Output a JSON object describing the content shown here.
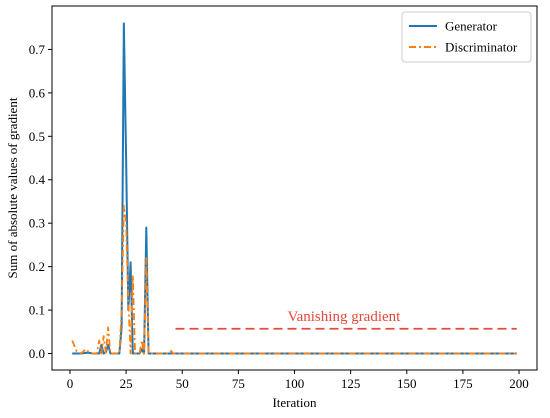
{
  "chart_data": {
    "type": "line",
    "title": "",
    "xlabel": "Iteration",
    "ylabel": "Sum of absolute values of gradient",
    "xlim": [
      -8,
      208
    ],
    "ylim": [
      -0.038,
      0.8
    ],
    "xticks": [
      0,
      25,
      50,
      75,
      100,
      125,
      150,
      175,
      200
    ],
    "yticks": [
      0.0,
      0.1,
      0.2,
      0.3,
      0.4,
      0.5,
      0.6,
      0.7
    ],
    "ytick_labels": [
      "0.0",
      "0.1",
      "0.2",
      "0.3",
      "0.4",
      "0.5",
      "0.6",
      "0.7"
    ],
    "grid": false,
    "legend_position": "top-right",
    "series": [
      {
        "name": "Generator",
        "color": "#1f77b4",
        "style": "solid",
        "x": [
          1,
          5,
          8,
          10,
          13,
          14,
          15,
          16,
          17,
          18,
          20,
          22,
          23,
          24,
          25,
          26,
          27,
          28,
          29,
          30,
          31,
          32,
          33,
          34,
          35,
          36,
          38,
          40,
          42,
          44,
          46,
          48,
          50,
          60,
          80,
          100,
          120,
          140,
          160,
          180,
          199
        ],
        "y": [
          0.0,
          0.0,
          0.002,
          0.0,
          0.0,
          0.02,
          0.0,
          0.003,
          0.02,
          0.0,
          0.0,
          0.0,
          0.06,
          0.76,
          0.45,
          0.1,
          0.21,
          0.0,
          0.0,
          0.0,
          0.0,
          0.01,
          0.0,
          0.29,
          0.0,
          0.0,
          0.0,
          0.0,
          0.0,
          0.0,
          0.0,
          0.0,
          0.0,
          0.0,
          0.0,
          0.0,
          0.0,
          0.0,
          0.0,
          0.0,
          0.0
        ]
      },
      {
        "name": "Discriminator",
        "color": "#ff7f0e",
        "style": "dashdot",
        "x": [
          1,
          3,
          5,
          7,
          8,
          10,
          12,
          13,
          14,
          15,
          16,
          17,
          18,
          20,
          22,
          23,
          24,
          25,
          26,
          27,
          28,
          29,
          30,
          31,
          32,
          33,
          34,
          35,
          36,
          38,
          40,
          42,
          44,
          45,
          46,
          48,
          50,
          60,
          80,
          100,
          120,
          140,
          160,
          180,
          199
        ],
        "y": [
          0.03,
          0.005,
          0.0,
          0.01,
          0.005,
          0.0,
          0.0,
          0.03,
          0.0,
          0.04,
          0.0,
          0.06,
          0.0,
          0.0,
          0.0,
          0.1,
          0.34,
          0.3,
          0.12,
          0.0,
          0.18,
          0.0,
          0.0,
          0.0,
          0.03,
          0.0,
          0.22,
          0.0,
          0.0,
          0.0,
          0.0,
          0.0,
          0.0,
          0.006,
          0.0,
          0.0,
          0.0,
          0.0,
          0.0,
          0.0,
          0.0,
          0.0,
          0.0,
          0.0,
          0.0
        ]
      }
    ],
    "annotation": {
      "text": "Vanishing gradient",
      "color": "#e8473a",
      "x_start": 47,
      "x_end": 199,
      "y": 0.057,
      "text_x": 122,
      "text_y": 0.075
    }
  }
}
